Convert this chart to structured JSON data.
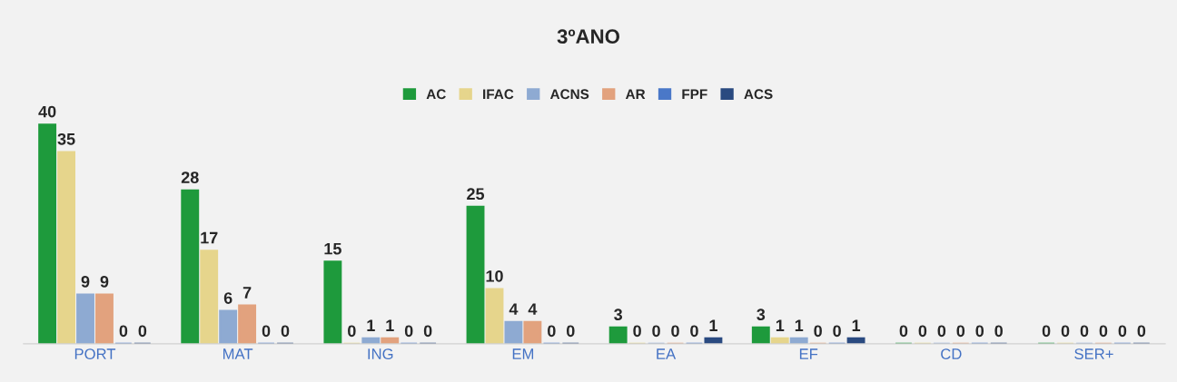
{
  "chart_data": {
    "type": "bar",
    "title": "3ºANO",
    "categories": [
      "PORT",
      "MAT",
      "ING",
      "EM",
      "EA",
      "EF",
      "CD",
      "SER+"
    ],
    "series": [
      {
        "name": "AC",
        "color": "#1e9a3c",
        "values": [
          40,
          28,
          15,
          25,
          3,
          3,
          0,
          0
        ]
      },
      {
        "name": "IFAC",
        "color": "#e6d58c",
        "values": [
          35,
          17,
          0,
          10,
          0,
          1,
          0,
          0
        ]
      },
      {
        "name": "ACNS",
        "color": "#8eaad2",
        "values": [
          9,
          6,
          1,
          4,
          0,
          1,
          0,
          0
        ]
      },
      {
        "name": "AR",
        "color": "#e2a27e",
        "values": [
          9,
          7,
          1,
          4,
          0,
          0,
          0,
          0
        ]
      },
      {
        "name": "FPF",
        "color": "#4a78c8",
        "values": [
          0,
          0,
          0,
          0,
          0,
          0,
          0,
          0
        ]
      },
      {
        "name": "ACS",
        "color": "#2a4a80",
        "values": [
          0,
          0,
          0,
          0,
          1,
          1,
          0,
          0
        ]
      }
    ],
    "data_labels": true,
    "legend": "top",
    "grid": false
  }
}
